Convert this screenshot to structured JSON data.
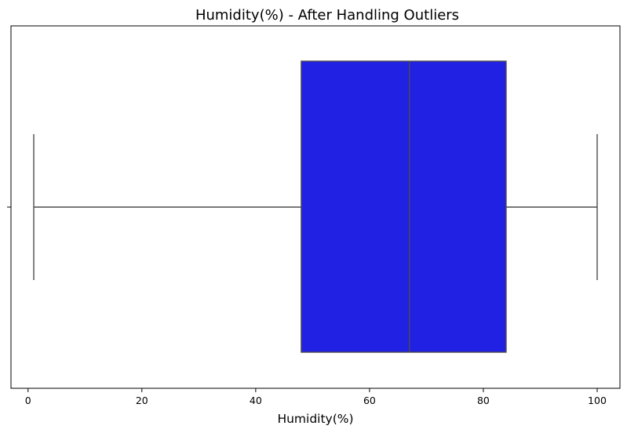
{
  "chart_data": {
    "type": "box",
    "title": "Humidity(%) - After Handling Outliers",
    "xlabel": "Humidity(%)",
    "ylabel": "",
    "orientation": "horizontal",
    "xlim": [
      -3,
      104
    ],
    "xticks": [
      0,
      20,
      40,
      60,
      80,
      100
    ],
    "xtick_labels": [
      "0",
      "20",
      "40",
      "60",
      "80",
      "100"
    ],
    "grid": false,
    "box": {
      "whisker_low": 1,
      "q1": 48,
      "median": 67,
      "q3": 84,
      "whisker_high": 100
    },
    "colors": {
      "box_fill": "#2121e3",
      "line": "#4d4d4d",
      "axes": "#000000"
    }
  }
}
